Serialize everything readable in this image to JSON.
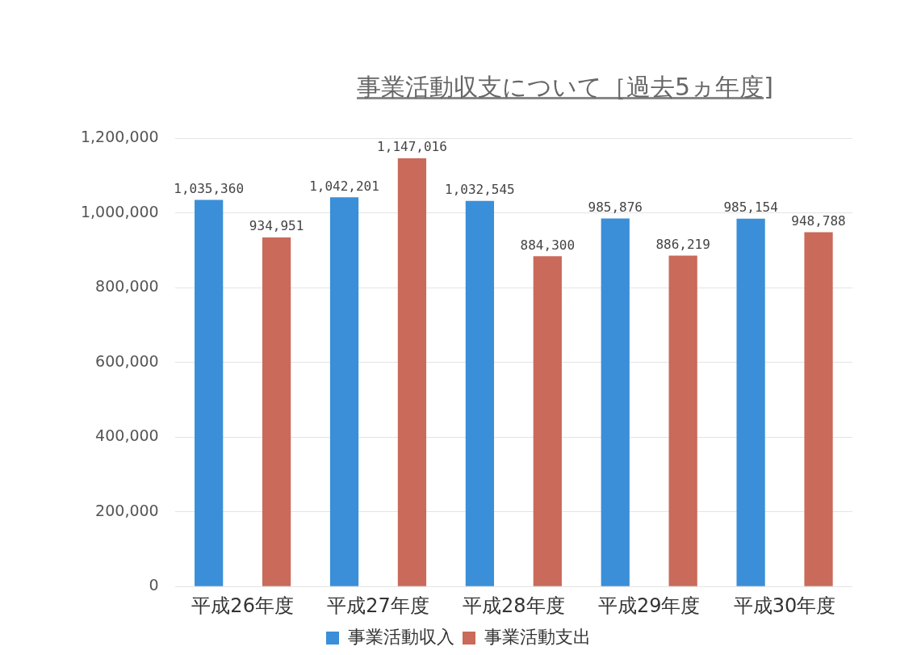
{
  "chart_data": {
    "type": "bar",
    "title": "事業活動収支について［過去5ヵ年度]",
    "categories": [
      "平成26年度",
      "平成27年度",
      "平成28年度",
      "平成29年度",
      "平成30年度"
    ],
    "series": [
      {
        "name": "事業活動収入",
        "color": "#3a8fd8",
        "values": [
          1035360,
          1042201,
          1032545,
          985876,
          985154
        ],
        "value_labels": [
          "1,035,360",
          "1,042,201",
          "1,032,545",
          "985,876",
          "985,154"
        ]
      },
      {
        "name": "事業活動支出",
        "color": "#c96a5a",
        "values": [
          934951,
          1147016,
          884300,
          886219,
          948788
        ],
        "value_labels": [
          "934,951",
          "1,147,016",
          "884,300",
          "886,219",
          "948,788"
        ]
      }
    ],
    "ylim": [
      0,
      1200000
    ],
    "yticks": [
      0,
      {
        "value": 200000,
        "label": "200,000"
      },
      {
        "value": 400000,
        "label": "400,000"
      },
      {
        "value": 600000,
        "label": "600,000"
      },
      {
        "value": 800000,
        "label": "800,000"
      },
      {
        "value": 1000000,
        "label": "1,000,000"
      },
      {
        "value": 1200000,
        "label": "1,200,000"
      }
    ],
    "grid": "y",
    "legend": "bottom"
  }
}
